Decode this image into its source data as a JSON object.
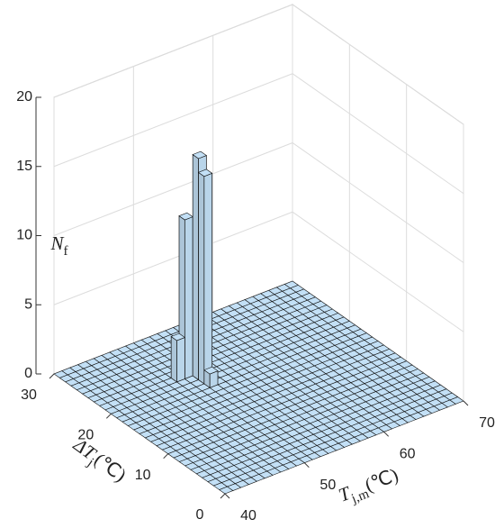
{
  "chart_data": {
    "type": "bar3",
    "xlabel": [
      "T",
      "j,m",
      "(℃)"
    ],
    "ylabel": [
      "ΔT",
      "j",
      "(℃)"
    ],
    "zlabel": [
      "N",
      "f"
    ],
    "xlim": [
      40,
      70
    ],
    "xticks": [
      40,
      50,
      60,
      70
    ],
    "ylim": [
      0,
      30
    ],
    "yticks": [
      0,
      10,
      20,
      30
    ],
    "zlim": [
      0,
      20
    ],
    "zticks": [
      0,
      5,
      10,
      15,
      20
    ],
    "grid": true,
    "color": "#c3e0f6",
    "x": [
      40.5,
      41.5,
      42.5,
      43.5,
      44.5,
      45.5,
      46.5,
      47.5,
      48.5,
      49.5,
      50.5,
      51.5,
      52.5,
      53.5,
      54.5,
      55.5,
      56.5,
      57.5,
      58.5,
      59.5,
      60.5,
      61.5,
      62.5,
      63.5,
      64.5,
      65.5,
      66.5,
      67.5,
      68.5,
      69.5
    ],
    "y": [
      0.5,
      1.5,
      2.5,
      3.5,
      4.5,
      5.5,
      6.5,
      7.5,
      8.5,
      9.5,
      10.5,
      11.5,
      12.5,
      13.5,
      14.5,
      15.5,
      16.5,
      17.5,
      18.5,
      19.5,
      20.5,
      21.5,
      22.5,
      23.5,
      24.5,
      25.5,
      26.5,
      27.5,
      28.5,
      29.5
    ],
    "values": [
      [
        0,
        0,
        0,
        0,
        0,
        0,
        0,
        0,
        0,
        0,
        0,
        0,
        0,
        0,
        0,
        0,
        0,
        0,
        0,
        0,
        0,
        0,
        0,
        0,
        0,
        0,
        0,
        0,
        0,
        0
      ],
      [
        0,
        0,
        0,
        0,
        0,
        0,
        0,
        0,
        0,
        0,
        0,
        0,
        0,
        0,
        0,
        0,
        0,
        0,
        0,
        0,
        0,
        0,
        0,
        0,
        0,
        0,
        0,
        0,
        0,
        0
      ],
      [
        0,
        0,
        0,
        0,
        0,
        0,
        0,
        0,
        0,
        0,
        0,
        0,
        0,
        0,
        0,
        0,
        0,
        0,
        0,
        0,
        0,
        0,
        0,
        0,
        0,
        0,
        0,
        0,
        0,
        0
      ],
      [
        0,
        0,
        0,
        0,
        0,
        0,
        0,
        0,
        0,
        0,
        0,
        0,
        0,
        0,
        0,
        0,
        0,
        0,
        0,
        0,
        0,
        0,
        0,
        0,
        0,
        0,
        0,
        0,
        0,
        0
      ],
      [
        0,
        0,
        0,
        0,
        0,
        0,
        0,
        0,
        0,
        0,
        0,
        0,
        0,
        0,
        0,
        0,
        0,
        0,
        0,
        0,
        0,
        0,
        0,
        0,
        0,
        0,
        0,
        0,
        0,
        0
      ],
      [
        0,
        0,
        0,
        0,
        0,
        0,
        0,
        0,
        0,
        0,
        0,
        0,
        0,
        0,
        0,
        0,
        0,
        0,
        0,
        0,
        0,
        0,
        0,
        0,
        0,
        0,
        0,
        0,
        0,
        0
      ],
      [
        0,
        0,
        0,
        0,
        0,
        0,
        0,
        0,
        0,
        0,
        0,
        0,
        0,
        0,
        0,
        0,
        0,
        0,
        0,
        0,
        0,
        0,
        0,
        0,
        0,
        0,
        0,
        0,
        0,
        0
      ],
      [
        0,
        0,
        0,
        0,
        0,
        0,
        0,
        0,
        0,
        0,
        0,
        0,
        0,
        0,
        0,
        0,
        0,
        0,
        0,
        0,
        0,
        0,
        0,
        0,
        0,
        0,
        0,
        0,
        0,
        0
      ],
      [
        0,
        0,
        0,
        0,
        0,
        0,
        0,
        0,
        0,
        0,
        0,
        0,
        0,
        0,
        0,
        0,
        0,
        0,
        0,
        0,
        0,
        0,
        0,
        0,
        0,
        0,
        0,
        0,
        0,
        0
      ],
      [
        0,
        0,
        0,
        0,
        0,
        0,
        0,
        0,
        0,
        0,
        0,
        0,
        0,
        0,
        0,
        0,
        0,
        0,
        0,
        0,
        0,
        0,
        0,
        0,
        0,
        0,
        0,
        0,
        0,
        0
      ],
      [
        0,
        0,
        0,
        0,
        0,
        0,
        0,
        0,
        0,
        0,
        0,
        0,
        0,
        0,
        0,
        0,
        0,
        0,
        0,
        0,
        0,
        0,
        0,
        0,
        0,
        0,
        0,
        0,
        0,
        0
      ],
      [
        0,
        0,
        0,
        0,
        0,
        0,
        0,
        0,
        0,
        0,
        0,
        0,
        0,
        0,
        0,
        0,
        0,
        0,
        0,
        0,
        0,
        0,
        0,
        0,
        0,
        0,
        0,
        0,
        0,
        0
      ],
      [
        0,
        0,
        0,
        0,
        0,
        0,
        0,
        0,
        0,
        0,
        0,
        0,
        0,
        0,
        0,
        0,
        0,
        0,
        0,
        0,
        0,
        0,
        0,
        0,
        0,
        0,
        0,
        0,
        0,
        0
      ],
      [
        0,
        0,
        0,
        0,
        0,
        0,
        0,
        0,
        0,
        0,
        0,
        0,
        0,
        0,
        0,
        0,
        0,
        0,
        0,
        0,
        0,
        0,
        0,
        0,
        0,
        0,
        0,
        0,
        0,
        0
      ],
      [
        0,
        0,
        0,
        0,
        0,
        0,
        0,
        0,
        0,
        0,
        0,
        0,
        0,
        0,
        0,
        0,
        0,
        0,
        0,
        0,
        0,
        0,
        0,
        0,
        0,
        0,
        0,
        0,
        0,
        0
      ],
      [
        0,
        0,
        0,
        0,
        0,
        0,
        0,
        0,
        0,
        0,
        0,
        0,
        0,
        0,
        0,
        0,
        0,
        0,
        0,
        0,
        0,
        0,
        0,
        0,
        0,
        0,
        0,
        0,
        0,
        0
      ],
      [
        0,
        0,
        0,
        0,
        0,
        0,
        0,
        0,
        0,
        0,
        0,
        0,
        0,
        0,
        0,
        0,
        0,
        0,
        0,
        0,
        0,
        0,
        0,
        0,
        0,
        0,
        0,
        0,
        0,
        0
      ],
      [
        0,
        0,
        0,
        0,
        0,
        0,
        0,
        0,
        0,
        0,
        0,
        0,
        0,
        0,
        0,
        0,
        0,
        0,
        0,
        0,
        0,
        0,
        0,
        0,
        0,
        0,
        0,
        0,
        0,
        0
      ],
      [
        0,
        0,
        0,
        0,
        0,
        0,
        0,
        0,
        0,
        0,
        0,
        1,
        0,
        0,
        0,
        0,
        0,
        0,
        0,
        0,
        0,
        0,
        0,
        0,
        0,
        0,
        0,
        0,
        0,
        0
      ],
      [
        0,
        0,
        0,
        0,
        0,
        0,
        0,
        0,
        0,
        0,
        0,
        15,
        0,
        0,
        0,
        0,
        0,
        0,
        0,
        0,
        0,
        0,
        0,
        0,
        0,
        0,
        0,
        0,
        0,
        0
      ],
      [
        0,
        0,
        0,
        0,
        0,
        0,
        0,
        0,
        0,
        0,
        0,
        16,
        0,
        0,
        0,
        0,
        0,
        0,
        0,
        0,
        0,
        0,
        0,
        0,
        0,
        0,
        0,
        0,
        0,
        0
      ],
      [
        0,
        0,
        0,
        0,
        0,
        0,
        0,
        0,
        0,
        3,
        11.5,
        0,
        0,
        0,
        0,
        0,
        0,
        0,
        0,
        0,
        0,
        0,
        0,
        0,
        0,
        0,
        0,
        0,
        0,
        0
      ],
      [
        0,
        0,
        0,
        0,
        0,
        0,
        0,
        0,
        0,
        0,
        0,
        0,
        0,
        0,
        0,
        0,
        0,
        0,
        0,
        0,
        0,
        0,
        0,
        0,
        0,
        0,
        0,
        0,
        0,
        0
      ],
      [
        0,
        0,
        0,
        0,
        0,
        0,
        0,
        0,
        0,
        0,
        0,
        0,
        0,
        0,
        0,
        0,
        0,
        0,
        0,
        0,
        0,
        0,
        0,
        0,
        0,
        0,
        0,
        0,
        0,
        0
      ],
      [
        0,
        0,
        0,
        0,
        0,
        0,
        0,
        0,
        0,
        0,
        0,
        0,
        0,
        0,
        0,
        0,
        0,
        0,
        0,
        0,
        0,
        0,
        0,
        0,
        0,
        0,
        0,
        0,
        0,
        0
      ],
      [
        0,
        0,
        0,
        0,
        0,
        0,
        0,
        0,
        0,
        0,
        0,
        0,
        0,
        0,
        0,
        0,
        0,
        0,
        0,
        0,
        0,
        0,
        0,
        0,
        0,
        0,
        0,
        0,
        0,
        0
      ],
      [
        0,
        0,
        0,
        0,
        0,
        0,
        0,
        0,
        0,
        0,
        0,
        0,
        0,
        0,
        0,
        0,
        0,
        0,
        0,
        0,
        0,
        0,
        0,
        0,
        0,
        0,
        0,
        0,
        0,
        0
      ],
      [
        0,
        0,
        0,
        0,
        0,
        0,
        0,
        0,
        0,
        0,
        0,
        0,
        0,
        0,
        0,
        0,
        0,
        0,
        0,
        0,
        0,
        0,
        0,
        0,
        0,
        0,
        0,
        0,
        0,
        0
      ],
      [
        0,
        0,
        0,
        0,
        0,
        0,
        0,
        0,
        0,
        0,
        0,
        0,
        0,
        0,
        0,
        0,
        0,
        0,
        0,
        0,
        0,
        0,
        0,
        0,
        0,
        0,
        0,
        0,
        0,
        0
      ],
      [
        0,
        0,
        0,
        0,
        0,
        0,
        0,
        0,
        0,
        0,
        0,
        0,
        0,
        0,
        0,
        0,
        0,
        0,
        0,
        0,
        0,
        0,
        0,
        0,
        0,
        0,
        0,
        0,
        0,
        0
      ]
    ]
  }
}
